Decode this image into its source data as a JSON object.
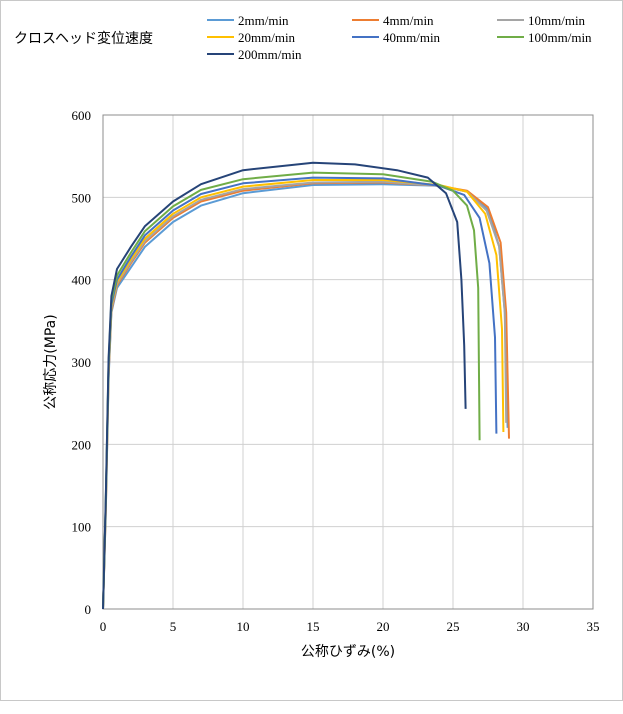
{
  "chart_data": {
    "type": "line",
    "legend_title": "クロスヘッド変位速度",
    "xlabel": "公称ひずみ(%)",
    "ylabel": "公称応力(MPa)",
    "xlim": [
      0,
      35
    ],
    "ylim": [
      0,
      600
    ],
    "xticks": [
      "0",
      "5",
      "10",
      "15",
      "20",
      "25",
      "30",
      "35"
    ],
    "yticks": [
      "0",
      "100",
      "200",
      "300",
      "400",
      "500",
      "600"
    ],
    "grid": true,
    "legend_position": "top",
    "series": [
      {
        "name": "2mm/min",
        "color": "#5b9bd5",
        "points": [
          [
            0,
            0
          ],
          [
            0.2,
            120
          ],
          [
            0.4,
            280
          ],
          [
            0.6,
            360
          ],
          [
            1,
            390
          ],
          [
            2,
            415
          ],
          [
            3,
            440
          ],
          [
            5,
            470
          ],
          [
            7,
            490
          ],
          [
            10,
            505
          ],
          [
            15,
            515
          ],
          [
            20,
            516
          ],
          [
            24,
            514
          ],
          [
            26,
            507
          ],
          [
            27.5,
            485
          ],
          [
            28.3,
            440
          ],
          [
            28.7,
            360
          ],
          [
            28.9,
            220
          ]
        ]
      },
      {
        "name": "4mm/min",
        "color": "#ed7d31",
        "points": [
          [
            0,
            0
          ],
          [
            0.2,
            120
          ],
          [
            0.4,
            285
          ],
          [
            0.6,
            362
          ],
          [
            1,
            393
          ],
          [
            2,
            420
          ],
          [
            3,
            445
          ],
          [
            5,
            475
          ],
          [
            7,
            495
          ],
          [
            10,
            508
          ],
          [
            15,
            517
          ],
          [
            20,
            518
          ],
          [
            24,
            514
          ],
          [
            26,
            508
          ],
          [
            27.5,
            488
          ],
          [
            28.4,
            445
          ],
          [
            28.8,
            360
          ],
          [
            29,
            207
          ]
        ]
      },
      {
        "name": "10mm/min",
        "color": "#a5a5a5",
        "points": [
          [
            0,
            0
          ],
          [
            0.2,
            125
          ],
          [
            0.4,
            288
          ],
          [
            0.6,
            365
          ],
          [
            1,
            395
          ],
          [
            2,
            422
          ],
          [
            3,
            447
          ],
          [
            5,
            477
          ],
          [
            7,
            497
          ],
          [
            10,
            510
          ],
          [
            15,
            518
          ],
          [
            20,
            519
          ],
          [
            24,
            514
          ],
          [
            26,
            507
          ],
          [
            27.4,
            484
          ],
          [
            28.3,
            440
          ],
          [
            28.7,
            360
          ],
          [
            28.8,
            226
          ]
        ]
      },
      {
        "name": "20mm/min",
        "color": "#ffc000",
        "points": [
          [
            0,
            0
          ],
          [
            0.2,
            128
          ],
          [
            0.4,
            292
          ],
          [
            0.6,
            368
          ],
          [
            1,
            397
          ],
          [
            2,
            425
          ],
          [
            3,
            450
          ],
          [
            5,
            480
          ],
          [
            7,
            500
          ],
          [
            10,
            513
          ],
          [
            15,
            521
          ],
          [
            20,
            521
          ],
          [
            24,
            515
          ],
          [
            26,
            507
          ],
          [
            27.3,
            480
          ],
          [
            28.1,
            430
          ],
          [
            28.5,
            340
          ],
          [
            28.6,
            215
          ]
        ]
      },
      {
        "name": "40mm/min",
        "color": "#4472c4",
        "points": [
          [
            0,
            0
          ],
          [
            0.2,
            130
          ],
          [
            0.4,
            295
          ],
          [
            0.6,
            370
          ],
          [
            1,
            400
          ],
          [
            2,
            428
          ],
          [
            3,
            454
          ],
          [
            5,
            484
          ],
          [
            7,
            504
          ],
          [
            10,
            517
          ],
          [
            15,
            524
          ],
          [
            20,
            523
          ],
          [
            24,
            514
          ],
          [
            25.8,
            503
          ],
          [
            26.9,
            475
          ],
          [
            27.6,
            420
          ],
          [
            28,
            330
          ],
          [
            28.1,
            213
          ]
        ]
      },
      {
        "name": "100mm/min",
        "color": "#70ad47",
        "points": [
          [
            0,
            0
          ],
          [
            0.2,
            132
          ],
          [
            0.4,
            300
          ],
          [
            0.6,
            375
          ],
          [
            1,
            405
          ],
          [
            2,
            433
          ],
          [
            3,
            459
          ],
          [
            5,
            489
          ],
          [
            7,
            509
          ],
          [
            10,
            522
          ],
          [
            15,
            530
          ],
          [
            20,
            528
          ],
          [
            23.5,
            519
          ],
          [
            25,
            508
          ],
          [
            26,
            490
          ],
          [
            26.5,
            460
          ],
          [
            26.8,
            390
          ],
          [
            26.9,
            205
          ]
        ]
      },
      {
        "name": "200mm/min",
        "color": "#264478",
        "points": [
          [
            0,
            0
          ],
          [
            0.2,
            135
          ],
          [
            0.4,
            305
          ],
          [
            0.6,
            380
          ],
          [
            1,
            413
          ],
          [
            2,
            440
          ],
          [
            3,
            465
          ],
          [
            5,
            495
          ],
          [
            7,
            516
          ],
          [
            10,
            533
          ],
          [
            15,
            542
          ],
          [
            18,
            540
          ],
          [
            21,
            533
          ],
          [
            23.2,
            524
          ],
          [
            24.5,
            505
          ],
          [
            25.3,
            470
          ],
          [
            25.6,
            400
          ],
          [
            25.8,
            320
          ],
          [
            25.9,
            243
          ]
        ]
      }
    ]
  }
}
